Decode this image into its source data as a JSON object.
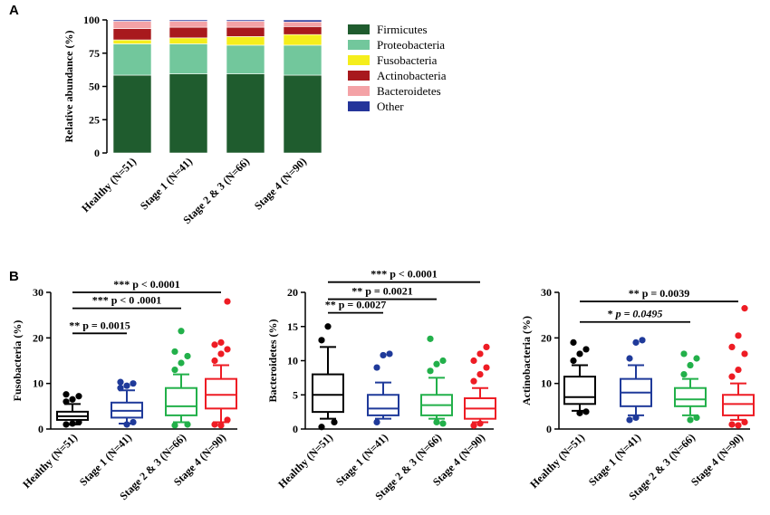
{
  "panel_labels": {
    "a": "A",
    "b": "B"
  },
  "chart_data": [
    {
      "type": "bar",
      "stacked": true,
      "title": "",
      "ylabel": "Relative abundance (%)",
      "ylim": [
        0,
        100
      ],
      "yticks": [
        0,
        25,
        50,
        75,
        100
      ],
      "categories": [
        "Healthy (N=51)",
        "Stage 1 (N=41)",
        "Stage 2 & 3 (N=66)",
        "Stage 4 (N=90)"
      ],
      "series": [
        {
          "name": "Firmicutes",
          "color": "#1f5c2e",
          "values": [
            58.5,
            59.5,
            59.5,
            58.5
          ]
        },
        {
          "name": "Proteobacteria",
          "color": "#72c79c",
          "values": [
            23.5,
            22.5,
            21.5,
            22.5
          ]
        },
        {
          "name": "Fusobacteria",
          "color": "#f5ee1c",
          "values": [
            3.0,
            4.5,
            6.5,
            8.0
          ]
        },
        {
          "name": "Actinobacteria",
          "color": "#a8191d",
          "values": [
            8.5,
            8.0,
            7.0,
            6.0
          ]
        },
        {
          "name": "Bacteroidetes",
          "color": "#f4a2a6",
          "values": [
            5.5,
            4.5,
            4.5,
            3.5
          ]
        },
        {
          "name": "Other",
          "color": "#24349a",
          "values": [
            1.0,
            1.0,
            1.0,
            1.5
          ]
        }
      ]
    },
    {
      "type": "box",
      "ylabel": "Fusobacteria (%)",
      "ylim": [
        0,
        30
      ],
      "yticks": [
        0,
        10,
        20,
        30
      ],
      "categories": [
        "Healthy (N=51)",
        "Stage 1 (N=41)",
        "Stage 2 & 3 (N=66)",
        "Stage 4 (N=90)"
      ],
      "colors": [
        "#000000",
        "#1f3a9a",
        "#22b04a",
        "#ee1c24"
      ],
      "boxes": [
        {
          "whisker_low": 1.0,
          "q1": 2.0,
          "median": 2.8,
          "q3": 3.8,
          "whisker_high": 5.5,
          "outliers": [
            6.0,
            6.5,
            7.2,
            7.6,
            1.2,
            1.5,
            1.0
          ]
        },
        {
          "whisker_low": 1.2,
          "q1": 2.5,
          "median": 4.0,
          "q3": 5.8,
          "whisker_high": 8.5,
          "outliers": [
            9.0,
            9.5,
            10.0,
            10.3,
            1.0,
            1.5
          ]
        },
        {
          "whisker_low": 1.5,
          "q1": 3.0,
          "median": 5.0,
          "q3": 9.0,
          "whisker_high": 12.0,
          "outliers": [
            13.0,
            14.5,
            16.0,
            17.0,
            21.5,
            1.0,
            0.8
          ]
        },
        {
          "whisker_low": 1.5,
          "q1": 4.5,
          "median": 7.5,
          "q3": 11.0,
          "whisker_high": 14.0,
          "outliers": [
            15.0,
            16.5,
            17.5,
            18.5,
            19.0,
            28.0,
            1.0,
            0.8,
            2.0
          ]
        }
      ],
      "annotations": [
        {
          "from": 0,
          "to": 1,
          "y": 21,
          "stars": "**",
          "text": "p = 0.0015"
        },
        {
          "from": 0,
          "to": 2,
          "y": 26.5,
          "stars": "***",
          "text": "p < 0 .0001"
        },
        {
          "from": 0,
          "to": 3,
          "y": 30,
          "stars": "***",
          "text": "p < 0.0001"
        }
      ]
    },
    {
      "type": "box",
      "ylabel": "Bacteroidetes (%)",
      "ylim": [
        0,
        20
      ],
      "yticks": [
        0,
        5,
        10,
        15,
        20
      ],
      "categories": [
        "Healthy (N=51)",
        "Stage 1 (N=41)",
        "Stage 2 & 3 (N=66)",
        "Stage 4 (N=90)"
      ],
      "colors": [
        "#000000",
        "#1f3a9a",
        "#22b04a",
        "#ee1c24"
      ],
      "boxes": [
        {
          "whisker_low": 1.5,
          "q1": 2.5,
          "median": 5.0,
          "q3": 8.0,
          "whisker_high": 12.0,
          "outliers": [
            13.0,
            15.0,
            1.0,
            0.3
          ]
        },
        {
          "whisker_low": 1.5,
          "q1": 2.0,
          "median": 3.0,
          "q3": 5.0,
          "whisker_high": 6.8,
          "outliers": [
            9.0,
            10.8,
            11.0,
            1.0
          ]
        },
        {
          "whisker_low": 1.5,
          "q1": 2.0,
          "median": 3.5,
          "q3": 5.0,
          "whisker_high": 7.5,
          "outliers": [
            8.5,
            9.5,
            10.0,
            13.2,
            1.0,
            0.8
          ]
        },
        {
          "whisker_low": 1.0,
          "q1": 1.5,
          "median": 3.0,
          "q3": 4.5,
          "whisker_high": 6.0,
          "outliers": [
            7.0,
            8.0,
            9.0,
            10.0,
            11.0,
            12.0,
            0.5,
            0.8
          ]
        }
      ],
      "annotations": [
        {
          "from": 0,
          "to": 1,
          "y": 17,
          "stars": "**",
          "text": "p = 0.0027"
        },
        {
          "from": 0,
          "to": 2,
          "y": 19,
          "stars": "**",
          "text": "p = 0.0021"
        },
        {
          "from": 0,
          "to": 3,
          "y": 21.5,
          "stars": "***",
          "text": "p < 0.0001"
        }
      ]
    },
    {
      "type": "box",
      "ylabel": "Actinobacteria (%)",
      "ylim": [
        0,
        30
      ],
      "yticks": [
        0,
        10,
        20,
        30
      ],
      "categories": [
        "Healthy (N=51)",
        "Stage 1 (N=41)",
        "Stage 2 & 3 (N=66)",
        "Stage 4 (N=90)"
      ],
      "colors": [
        "#000000",
        "#1f3a9a",
        "#22b04a",
        "#ee1c24"
      ],
      "boxes": [
        {
          "whisker_low": 4.0,
          "q1": 5.5,
          "median": 7.0,
          "q3": 11.5,
          "whisker_high": 14.0,
          "outliers": [
            15.0,
            16.5,
            17.5,
            19.0,
            3.5,
            3.8
          ]
        },
        {
          "whisker_low": 3.0,
          "q1": 5.0,
          "median": 8.0,
          "q3": 11.0,
          "whisker_high": 14.0,
          "outliers": [
            15.5,
            19.0,
            19.5,
            2.0,
            2.5
          ]
        },
        {
          "whisker_low": 3.0,
          "q1": 5.0,
          "median": 6.5,
          "q3": 9.0,
          "whisker_high": 11.0,
          "outliers": [
            12.0,
            14.0,
            15.5,
            16.5,
            2.0,
            2.5
          ]
        },
        {
          "whisker_low": 2.0,
          "q1": 3.0,
          "median": 5.5,
          "q3": 7.5,
          "whisker_high": 10.0,
          "outliers": [
            11.5,
            13.0,
            16.5,
            18.0,
            20.5,
            26.5,
            1.0,
            0.8,
            1.5
          ]
        }
      ],
      "annotations": [
        {
          "from": 0,
          "to": 2,
          "y": 23.5,
          "stars": "*",
          "text": "p = 0.0495",
          "italic": true
        },
        {
          "from": 0,
          "to": 3,
          "y": 28,
          "stars": "**",
          "text": "p = 0.0039"
        }
      ]
    }
  ]
}
